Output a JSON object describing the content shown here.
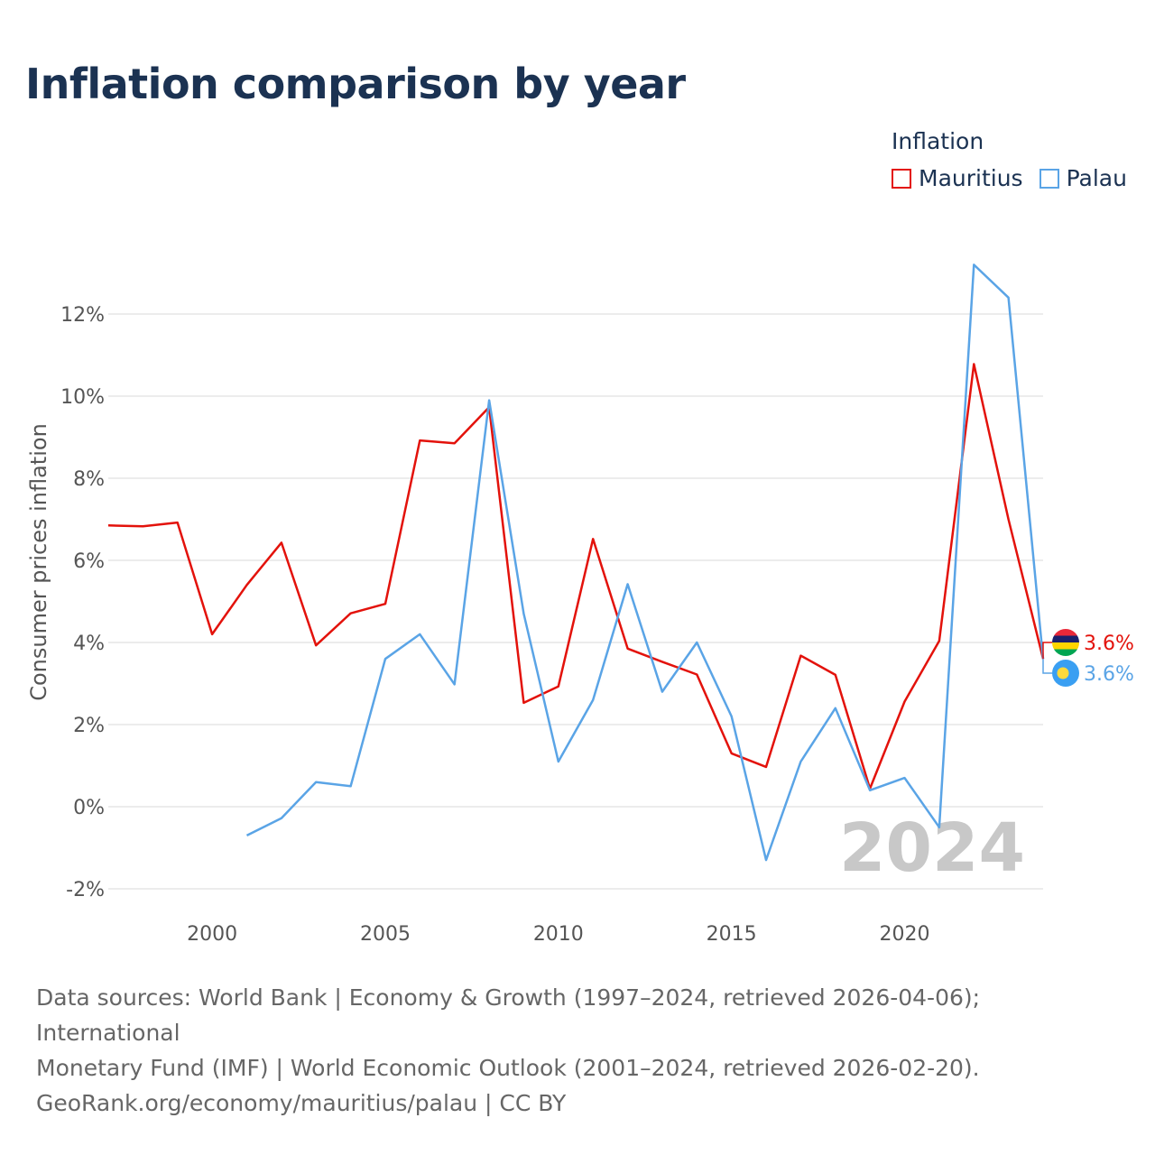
{
  "title": "Inflation comparison by year",
  "legend": {
    "title": "Inflation",
    "items": [
      {
        "label": "Mauritius",
        "color": "#e3120b"
      },
      {
        "label": "Palau",
        "color": "#5aa4e6"
      }
    ]
  },
  "chart_data": {
    "type": "line",
    "title": "Inflation comparison by year",
    "xlabel": "",
    "ylabel": "Consumer prices inflation",
    "xlim": [
      1997,
      2024
    ],
    "ylim": [
      -2.2,
      13.5
    ],
    "x_ticks": [
      2000,
      2005,
      2010,
      2015,
      2020
    ],
    "y_ticks": [
      -2,
      0,
      2,
      4,
      6,
      8,
      10,
      12
    ],
    "y_tick_labels": [
      "-2%",
      "0%",
      "2%",
      "4%",
      "6%",
      "8%",
      "10%",
      "12%"
    ],
    "grid": true,
    "year_label": "2024",
    "series": [
      {
        "name": "Mauritius",
        "color": "#e3120b",
        "x": [
          1997,
          1998,
          1999,
          2000,
          2001,
          2002,
          2003,
          2004,
          2005,
          2006,
          2007,
          2008,
          2009,
          2010,
          2011,
          2012,
          2013,
          2014,
          2015,
          2016,
          2017,
          2018,
          2019,
          2020,
          2021,
          2022,
          2023,
          2024
        ],
        "values": [
          6.85,
          6.83,
          6.92,
          4.2,
          5.4,
          6.43,
          3.93,
          4.71,
          4.94,
          8.92,
          8.85,
          9.73,
          2.53,
          2.93,
          6.52,
          3.85,
          3.53,
          3.22,
          1.3,
          0.97,
          3.68,
          3.21,
          0.44,
          2.56,
          4.04,
          10.78,
          7.0,
          3.6
        ],
        "end_label": "3.6%"
      },
      {
        "name": "Palau",
        "color": "#5aa4e6",
        "x": [
          2001,
          2002,
          2003,
          2004,
          2005,
          2006,
          2007,
          2008,
          2009,
          2010,
          2011,
          2012,
          2013,
          2014,
          2015,
          2016,
          2017,
          2018,
          2019,
          2020,
          2021,
          2022,
          2023,
          2024
        ],
        "values": [
          -0.7,
          -0.28,
          0.6,
          0.5,
          3.6,
          4.2,
          2.98,
          9.9,
          4.7,
          1.1,
          2.6,
          5.42,
          2.8,
          4.0,
          2.2,
          -1.3,
          1.1,
          2.4,
          0.4,
          0.7,
          -0.5,
          13.2,
          12.4,
          3.6
        ],
        "end_label": "3.6%"
      }
    ]
  },
  "footer": {
    "line1": "Data sources: World Bank | Economy & Growth (1997–2024, retrieved 2026-04-06); International",
    "line2": "Monetary Fund (IMF) | World Economic Outlook (2001–2024, retrieved 2026-02-20).",
    "line3": "GeoRank.org/economy/mauritius/palau | CC BY"
  }
}
